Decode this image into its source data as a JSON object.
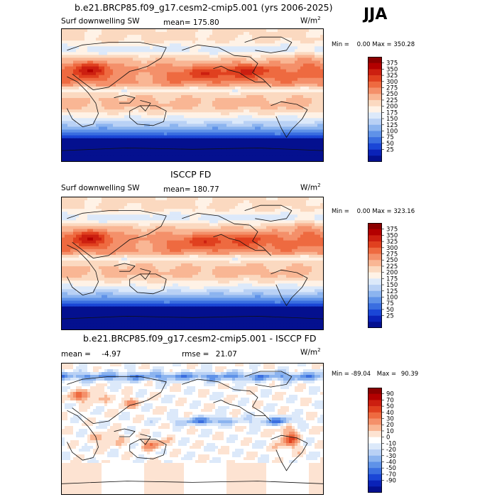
{
  "header": {
    "season": "JJA"
  },
  "chart_data": [
    {
      "type": "heatmap",
      "title": "b.e21.BRCP85.f09_g17.cesm2-cmip5.001 (yrs 2006-2025)",
      "variable": "Surf downwelling SW",
      "mean_text": "mean=",
      "mean": "175.80",
      "units": "W/m",
      "units_exp": "2",
      "min_label": "Min =",
      "min": "0.00",
      "max_label": "Max =",
      "max": "350.28",
      "colorbar": {
        "labels": [
          "375",
          "350",
          "325",
          "300",
          "275",
          "250",
          "225",
          "200",
          "175",
          "150",
          "125",
          "100",
          "75",
          "50",
          "25"
        ],
        "colors": [
          "#8b0000",
          "#b30000",
          "#cc1f10",
          "#e0401f",
          "#ee6a40",
          "#f4906a",
          "#f9b694",
          "#fbd9c0",
          "#fff2e6",
          "#dce9fa",
          "#b9d1f5",
          "#8cb4ef",
          "#5f92e8",
          "#3a6ee0",
          "#1a46d6",
          "#0a22b8",
          "#04108f"
        ]
      }
    },
    {
      "type": "heatmap",
      "title": "ISCCP FD",
      "variable": "Surf downwelling SW",
      "mean_text": "mean=",
      "mean": "180.77",
      "units": "W/m",
      "units_exp": "2",
      "min_label": "Min =",
      "min": "0.00",
      "max_label": "Max =",
      "max": "323.16",
      "colorbar": {
        "labels": [
          "375",
          "350",
          "325",
          "300",
          "275",
          "250",
          "225",
          "200",
          "175",
          "150",
          "125",
          "100",
          "75",
          "50",
          "25"
        ],
        "colors": [
          "#8b0000",
          "#b30000",
          "#cc1f10",
          "#e0401f",
          "#ee6a40",
          "#f4906a",
          "#f9b694",
          "#fbd9c0",
          "#fff2e6",
          "#dce9fa",
          "#b9d1f5",
          "#8cb4ef",
          "#5f92e8",
          "#3a6ee0",
          "#1a46d6",
          "#0a22b8",
          "#04108f"
        ]
      }
    },
    {
      "type": "heatmap",
      "title": "b.e21.BRCP85.f09_g17.cesm2-cmip5.001 - ISCCP FD",
      "variable": "",
      "mean_text": "mean =",
      "mean": "-4.97",
      "rmse_text": "rmse =",
      "rmse": "21.07",
      "units": "W/m",
      "units_exp": "2",
      "min_label": "Min =",
      "min": "-89.04",
      "max_label": "Max =",
      "max": "90.39",
      "colorbar": {
        "labels": [
          "90",
          "70",
          "50",
          "40",
          "30",
          "20",
          "10",
          "0",
          "-10",
          "-20",
          "-30",
          "-40",
          "-50",
          "-70",
          "-90"
        ],
        "colors": [
          "#8b0000",
          "#b30000",
          "#cc1f10",
          "#e0401f",
          "#ee6a40",
          "#f4906a",
          "#f9b694",
          "#fde3d2",
          "#ffffff",
          "#dce9fa",
          "#b9d1f5",
          "#8cb4ef",
          "#5f92e8",
          "#3a6ee0",
          "#1a46d6",
          "#0a22b8",
          "#04108f"
        ]
      }
    }
  ]
}
